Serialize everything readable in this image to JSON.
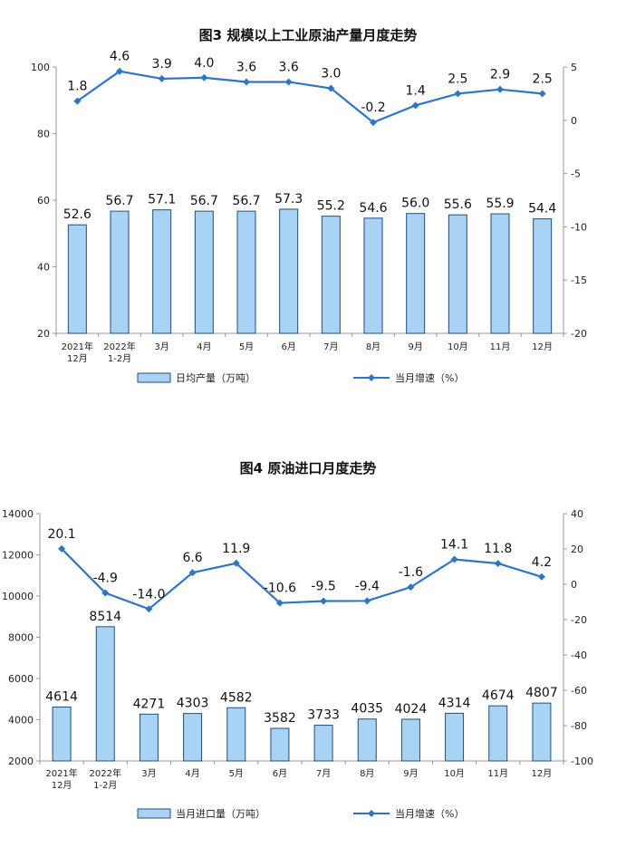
{
  "chart_data": [
    {
      "type": "bar+line",
      "title": "图3  规模以上工业原油产量月度走势",
      "categories": [
        [
          "2021年",
          "12月"
        ],
        [
          "2022年",
          "1-2月"
        ],
        [
          "3月"
        ],
        [
          "4月"
        ],
        [
          "5月"
        ],
        [
          "6月"
        ],
        [
          "7月"
        ],
        [
          "8月"
        ],
        [
          "9月"
        ],
        [
          "10月"
        ],
        [
          "11月"
        ],
        [
          "12月"
        ]
      ],
      "bar_series": {
        "name": "日均产量（万吨）",
        "values": [
          52.6,
          56.7,
          57.1,
          56.7,
          56.7,
          57.3,
          55.2,
          54.6,
          56.0,
          55.6,
          55.9,
          54.4
        ],
        "labels": [
          "52.6",
          "56.7",
          "57.1",
          "56.7",
          "56.7",
          "57.3",
          "55.2",
          "54.6",
          "56.0",
          "55.6",
          "55.9",
          "54.4"
        ]
      },
      "line_series": {
        "name": "当月增速（%）",
        "values": [
          1.8,
          4.6,
          3.9,
          4.0,
          3.6,
          3.6,
          3.0,
          -0.2,
          1.4,
          2.5,
          2.9,
          2.5
        ],
        "labels": [
          "1.8",
          "4.6",
          "3.9",
          "4.0",
          "3.6",
          "3.6",
          "3.0",
          "-0.2",
          "1.4",
          "2.5",
          "2.9",
          "2.5"
        ]
      },
      "y_left": {
        "min": 20,
        "max": 100,
        "ticks": [
          "20",
          "40",
          "60",
          "80",
          "100"
        ]
      },
      "y_right": {
        "min": -20,
        "max": 5,
        "ticks": [
          "-20",
          "-15",
          "-10",
          "-5",
          "0",
          "5"
        ]
      },
      "colors": {
        "bar_fill": "#a9d3f5",
        "bar_stroke": "#1f4e79",
        "line": "#2e75c6"
      }
    },
    {
      "type": "bar+line",
      "title": "图4  原油进口月度走势",
      "categories": [
        [
          "2021年",
          "12月"
        ],
        [
          "2022年",
          "1-2月"
        ],
        [
          "3月"
        ],
        [
          "4月"
        ],
        [
          "5月"
        ],
        [
          "6月"
        ],
        [
          "7月"
        ],
        [
          "8月"
        ],
        [
          "9月"
        ],
        [
          "10月"
        ],
        [
          "11月"
        ],
        [
          "12月"
        ]
      ],
      "bar_series": {
        "name": "当月进口量（万吨）",
        "values": [
          4614,
          8514,
          4271,
          4303,
          4582,
          3582,
          3733,
          4035,
          4024,
          4314,
          4674,
          4807
        ],
        "labels": [
          "4614",
          "8514",
          "4271",
          "4303",
          "4582",
          "3582",
          "3733",
          "4035",
          "4024",
          "4314",
          "4674",
          "4807"
        ]
      },
      "line_series": {
        "name": "当月增速（%）",
        "values": [
          20.1,
          -4.9,
          -14.0,
          6.6,
          11.9,
          -10.6,
          -9.5,
          -9.4,
          -1.6,
          14.1,
          11.8,
          4.2
        ],
        "labels": [
          "20.1",
          "-4.9",
          "-14.0",
          "6.6",
          "11.9",
          "-10.6",
          "-9.5",
          "-9.4",
          "-1.6",
          "14.1",
          "11.8",
          "4.2"
        ]
      },
      "y_left": {
        "min": 2000,
        "max": 14000,
        "ticks": [
          "2000",
          "4000",
          "6000",
          "8000",
          "10000",
          "12000",
          "14000"
        ]
      },
      "y_right": {
        "min": -100,
        "max": 40,
        "ticks": [
          "-100",
          "-80",
          "-60",
          "-40",
          "-20",
          "0",
          "20",
          "40"
        ]
      },
      "colors": {
        "bar_fill": "#a9d3f5",
        "bar_stroke": "#1f4e79",
        "line": "#2e75c6"
      }
    }
  ]
}
